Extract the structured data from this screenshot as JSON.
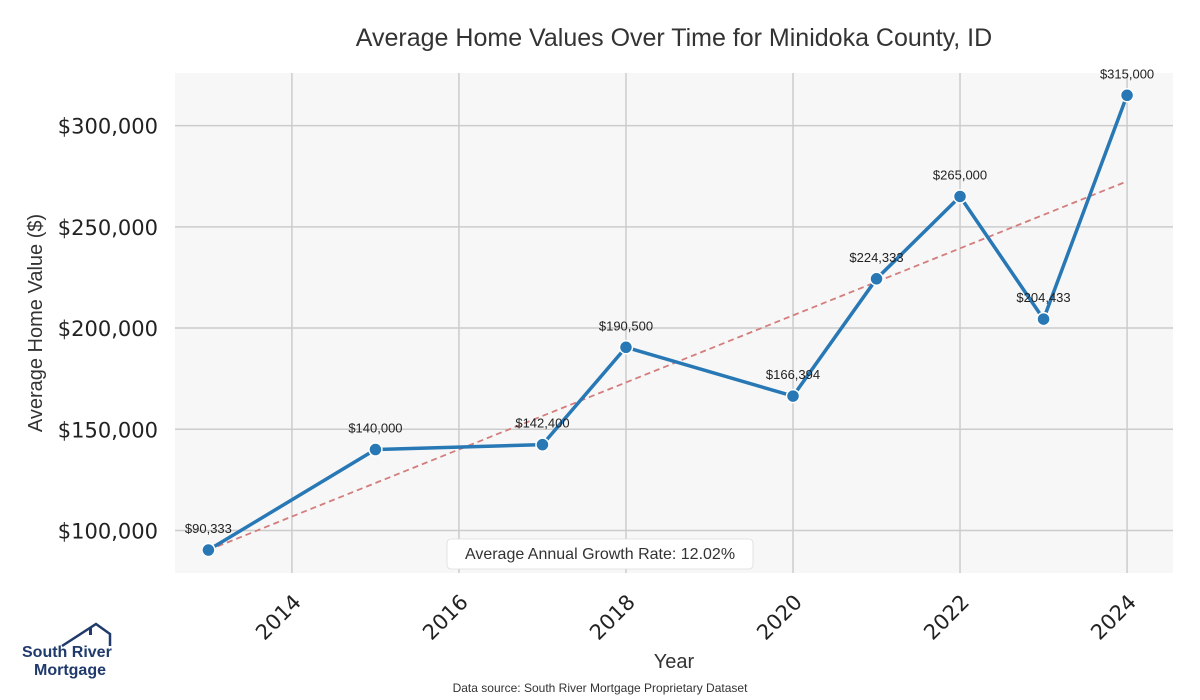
{
  "chart_data": {
    "type": "line",
    "title": "Average Home Values Over Time for Minidoka County, ID",
    "xlabel": "Year",
    "ylabel": "Average Home Value ($)",
    "x": [
      2013,
      2015,
      2017,
      2018,
      2020,
      2021,
      2022,
      2023,
      2024
    ],
    "series": [
      {
        "values": [
          90333,
          140000,
          142400,
          190500,
          166394,
          224333,
          265000,
          204433,
          315000
        ],
        "labels": [
          "$90,333",
          "$140,000",
          "$142,400",
          "$190,500",
          "$166,394",
          "$224,333",
          "$265,000",
          "$204,433",
          "$315,000"
        ],
        "color": "#2878b5"
      }
    ],
    "trendline": {
      "x": [
        2013,
        2024
      ],
      "y": [
        90333,
        272500
      ],
      "color": "#d47d7d",
      "style": "dashed"
    },
    "xticks": [
      2014,
      2016,
      2018,
      2020,
      2022,
      2024
    ],
    "xtick_labels": [
      "2014",
      "2016",
      "2018",
      "2020",
      "2022",
      "2024"
    ],
    "yticks": [
      100000,
      150000,
      200000,
      250000,
      300000
    ],
    "ytick_labels": [
      "$100,000",
      "$150,000",
      "$200,000",
      "$250,000",
      "$300,000"
    ],
    "xlim": [
      2012.6,
      2024.55
    ],
    "ylim": [
      79000,
      326000
    ],
    "grid": true,
    "annotation": "Average Annual Growth Rate: 12.02%",
    "plot_background": "#f7f7f7",
    "grid_color": "#cccccc"
  },
  "footer": {
    "source": "Data source: South River Mortgage Proprietary Dataset"
  },
  "logo": {
    "line1": "South River",
    "line2": "Mortgage",
    "color": "#1f3a6b"
  }
}
